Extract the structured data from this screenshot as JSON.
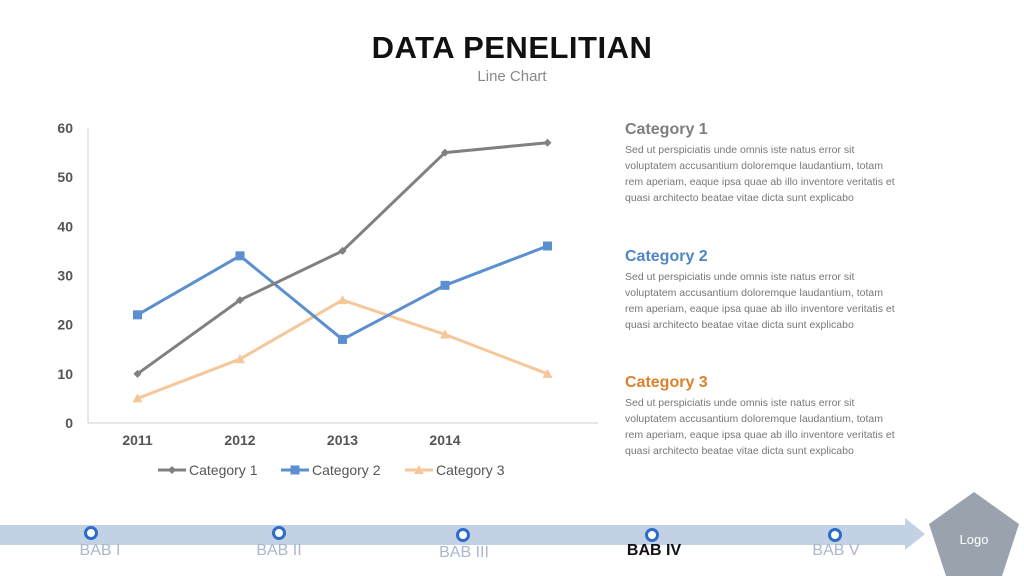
{
  "header": {
    "title": "DATA PENELITIAN",
    "subtitle": "Line Chart"
  },
  "chart_data": {
    "type": "line",
    "categories": [
      "2011",
      "2012",
      "2013",
      "2014",
      ""
    ],
    "series": [
      {
        "name": "Category 1",
        "values": [
          10,
          25,
          35,
          55,
          57
        ],
        "color": "#808080",
        "marker": "diamond"
      },
      {
        "name": "Category 2",
        "values": [
          22,
          34,
          17,
          28,
          36
        ],
        "color": "#5b8fcf",
        "marker": "square"
      },
      {
        "name": "Category 3",
        "values": [
          5,
          13,
          25,
          18,
          10
        ],
        "color": "#f5c79a",
        "marker": "triangle"
      }
    ],
    "ylim": [
      0,
      60
    ],
    "yticks": [
      "0",
      "10",
      "20",
      "30",
      "40",
      "50",
      "60"
    ],
    "grid": false,
    "legend": "bottom"
  },
  "descriptions": [
    {
      "title": "Category 1",
      "color": "#7f7f7f",
      "text": "Sed ut perspiciatis unde omnis iste natus error sit voluptatem accusantium doloremque laudantium, totam rem aperiam, eaque ipsa quae ab illo inventore veritatis et quasi architecto beatae vitae dicta sunt explicabo"
    },
    {
      "title": "Category 2",
      "color": "#4f86c6",
      "text": "Sed ut perspiciatis unde omnis iste natus error sit voluptatem accusantium doloremque laudantium, totam rem aperiam, eaque ipsa quae ab illo inventore veritatis et quasi architecto beatae vitae dicta sunt explicabo"
    },
    {
      "title": "Category 3",
      "color": "#d9822b",
      "text": "Sed ut perspiciatis unde omnis iste natus error sit voluptatem accusantium doloremque laudantium, totam rem aperiam, eaque ipsa quae ab illo inventore veritatis et quasi architecto beatae vitae dicta sunt explicabo"
    }
  ],
  "timeline": {
    "items": [
      "BAB I",
      "BAB II",
      "BAB III",
      "BAB IV",
      "BAB V"
    ],
    "active": "BAB IV",
    "bar_color": "#c3d1e5",
    "node_color": "#2e6cc9"
  },
  "logo": {
    "label": "Logo",
    "color": "#9aa3ad"
  }
}
